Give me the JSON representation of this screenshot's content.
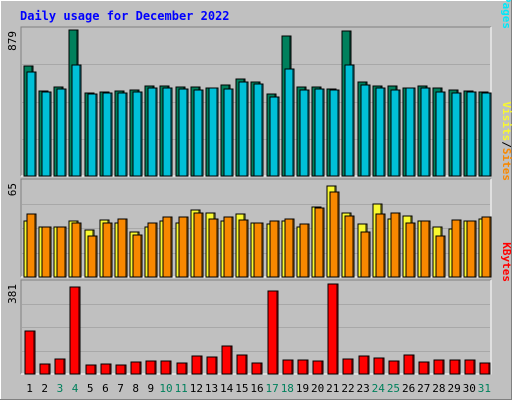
{
  "chart_data": {
    "type": "bar",
    "title": "Daily usage for December 2022",
    "categories": [
      "1",
      "2",
      "3",
      "4",
      "5",
      "6",
      "7",
      "8",
      "9",
      "10",
      "11",
      "12",
      "13",
      "14",
      "15",
      "16",
      "17",
      "18",
      "19",
      "20",
      "21",
      "22",
      "23",
      "24",
      "25",
      "26",
      "27",
      "28",
      "29",
      "30",
      "31"
    ],
    "weekend_days": [
      "3",
      "4",
      "10",
      "11",
      "17",
      "18",
      "24",
      "25",
      "31"
    ],
    "panels": [
      {
        "id": "hits-files-pages",
        "scale_max_label": "879",
        "ylim": [
          0,
          879
        ],
        "label_parts": [
          "Pages",
          "Files",
          "Hits"
        ],
        "series": [
          {
            "name": "Hits",
            "color": "#00805c",
            "values": [
              665,
              512,
              536,
              879,
              499,
              505,
              509,
              520,
              539,
              540,
              535,
              538,
              531,
              548,
              586,
              568,
              494,
              840,
              538,
              535,
              524,
              875,
              568,
              544,
              540,
              530,
              544,
              530,
              517,
              514,
              506
            ]
          },
          {
            "name": "Files",
            "color": "#00c0d8",
            "values": [
              625,
              505,
              526,
              671,
              493,
              502,
              502,
              505,
              528,
              529,
              525,
              519,
              532,
              524,
              567,
              556,
              478,
              644,
              517,
              521,
              517,
              667,
              545,
              530,
              518,
              528,
              527,
              505,
              498,
              504,
              501
            ]
          },
          {
            "name": "Pages",
            "color": "#00e8f8",
            "values": []
          }
        ]
      },
      {
        "id": "visits-sites",
        "scale_max_label": "65",
        "ylim": [
          0,
          65
        ],
        "label_parts": [
          "Sites",
          "Visits"
        ],
        "series": [
          {
            "name": "Visits",
            "color": "#f8f830",
            "values": [
              38,
              34,
              34,
              38,
              32,
              39,
              37,
              31,
              34,
              38,
              37,
              46,
              44,
              38,
              43,
              37,
              36,
              38,
              34,
              48,
              62,
              44,
              36,
              50,
              40,
              42,
              38,
              34,
              33,
              38,
              40
            ]
          },
          {
            "name": "Sites",
            "color": "#f88800",
            "values": [
              43,
              34,
              34,
              37,
              28,
              37,
              40,
              29,
              37,
              41,
              41,
              44,
              40,
              41,
              39,
              37,
              38,
              40,
              36,
              47,
              58,
              42,
              31,
              43,
              44,
              37,
              38,
              28,
              39,
              38,
              41
            ]
          }
        ]
      },
      {
        "id": "kbytes",
        "scale_max_label": "381",
        "ylim": [
          0,
          381
        ],
        "label_parts": [
          "KBytes"
        ],
        "series": [
          {
            "name": "KBytes",
            "color": "#ff0000",
            "values": [
              180,
              40,
              64,
              365,
              36,
              41,
              37,
              52,
              55,
              55,
              45,
              75,
              70,
              116,
              80,
              45,
              347,
              60,
              58,
              55,
              375,
              63,
              74,
              65,
              54,
              80,
              52,
              60,
              59,
              57,
              47
            ]
          }
        ]
      }
    ]
  }
}
